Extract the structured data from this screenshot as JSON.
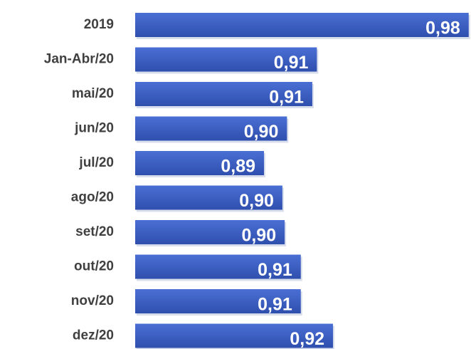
{
  "chart_data": {
    "type": "bar",
    "orientation": "horizontal",
    "categories": [
      "2019",
      "Jan-Abr/20",
      "mai/20",
      "jun/20",
      "jul/20",
      "ago/20",
      "set/20",
      "out/20",
      "nov/20",
      "dez/20"
    ],
    "values": [
      0.98,
      0.914,
      0.912,
      0.901,
      0.891,
      0.899,
      0.9,
      0.907,
      0.907,
      0.921
    ],
    "value_labels": [
      "0,98",
      "0,91",
      "0,91",
      "0,90",
      "0,89",
      "0,90",
      "0,90",
      "0,91",
      "0,91",
      "0,92"
    ],
    "color": "#3a5cc2",
    "xlim": [
      0.835,
      0.981
    ]
  }
}
